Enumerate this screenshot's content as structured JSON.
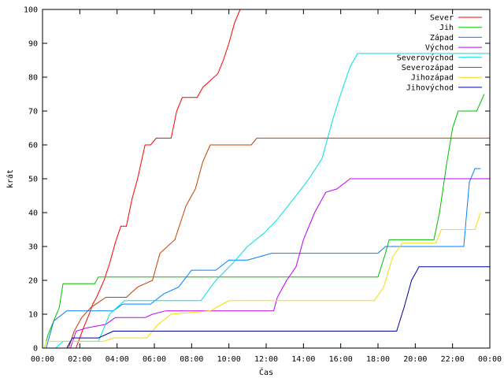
{
  "chart_data": {
    "type": "line",
    "title": "",
    "xlabel": "Čas",
    "ylabel": "krát",
    "ylim": [
      0,
      100
    ],
    "xlim": [
      0,
      24
    ],
    "x_ticks": [
      "00:00",
      "02:00",
      "04:00",
      "06:00",
      "08:00",
      "10:00",
      "12:00",
      "14:00",
      "16:00",
      "18:00",
      "20:00",
      "22:00",
      "00:00"
    ],
    "y_ticks": [
      "0",
      "10",
      "20",
      "30",
      "40",
      "50",
      "60",
      "70",
      "80",
      "90",
      "100"
    ],
    "grid": false,
    "legend_position": "top-right",
    "series": [
      {
        "name": "Sever",
        "color": "#ff0000",
        "points": [
          [
            1.8,
            0
          ],
          [
            2.0,
            3
          ],
          [
            2.2,
            6
          ],
          [
            2.5,
            10
          ],
          [
            2.7,
            13
          ],
          [
            2.9,
            15
          ],
          [
            3.3,
            20
          ],
          [
            3.6,
            25
          ],
          [
            3.9,
            31
          ],
          [
            4.2,
            36
          ],
          [
            4.5,
            36
          ],
          [
            4.8,
            44
          ],
          [
            5.1,
            50
          ],
          [
            5.5,
            60
          ],
          [
            5.8,
            60
          ],
          [
            6.1,
            62
          ],
          [
            6.9,
            62
          ],
          [
            7.2,
            70
          ],
          [
            7.5,
            74
          ],
          [
            8.3,
            74
          ],
          [
            8.6,
            77
          ],
          [
            9.0,
            79
          ],
          [
            9.4,
            81
          ],
          [
            9.7,
            85
          ],
          [
            10.0,
            90
          ],
          [
            10.3,
            96
          ],
          [
            10.6,
            100
          ]
        ]
      },
      {
        "name": "Jih",
        "color": "#00c000",
        "points": [
          [
            0.1,
            0
          ],
          [
            0.3,
            4
          ],
          [
            0.6,
            8
          ],
          [
            0.9,
            12
          ],
          [
            1.1,
            19
          ],
          [
            2.8,
            19
          ],
          [
            3.0,
            21
          ],
          [
            18.0,
            21
          ],
          [
            18.4,
            28
          ],
          [
            18.6,
            32
          ],
          [
            21.0,
            32
          ],
          [
            21.3,
            40
          ],
          [
            21.7,
            55
          ],
          [
            22.0,
            65
          ],
          [
            22.3,
            70
          ],
          [
            23.3,
            70
          ],
          [
            23.7,
            75
          ]
        ]
      },
      {
        "name": "Západ",
        "color": "#0080ff",
        "points": [
          [
            0.2,
            0
          ],
          [
            0.6,
            8
          ],
          [
            1.3,
            11
          ],
          [
            3.8,
            11
          ],
          [
            4.3,
            13
          ],
          [
            5.8,
            13
          ],
          [
            6.5,
            16
          ],
          [
            7.3,
            18
          ],
          [
            8.0,
            23
          ],
          [
            9.3,
            23
          ],
          [
            10.0,
            26
          ],
          [
            11.0,
            26
          ],
          [
            12.3,
            28
          ],
          [
            18.0,
            28
          ],
          [
            18.4,
            30
          ],
          [
            22.6,
            30
          ],
          [
            22.9,
            49
          ],
          [
            23.2,
            53
          ],
          [
            23.5,
            53
          ]
        ]
      },
      {
        "name": "Východ",
        "color": "#c000ff",
        "points": [
          [
            1.5,
            0
          ],
          [
            1.8,
            5
          ],
          [
            2.4,
            6
          ],
          [
            3.4,
            7
          ],
          [
            3.9,
            9
          ],
          [
            5.5,
            9
          ],
          [
            5.9,
            10
          ],
          [
            6.6,
            11
          ],
          [
            12.4,
            11
          ],
          [
            12.6,
            15
          ],
          [
            13.1,
            20
          ],
          [
            13.6,
            24
          ],
          [
            14.0,
            32
          ],
          [
            14.6,
            40
          ],
          [
            15.2,
            46
          ],
          [
            15.8,
            47
          ],
          [
            16.5,
            50
          ],
          [
            24,
            50
          ]
        ]
      },
      {
        "name": "Severovýchod",
        "color": "#00e0e0",
        "points": [
          [
            0.7,
            0
          ],
          [
            1.1,
            2
          ],
          [
            3.0,
            2
          ],
          [
            3.6,
            10
          ],
          [
            4.4,
            14
          ],
          [
            8.5,
            14
          ],
          [
            9.3,
            20
          ],
          [
            10.2,
            25
          ],
          [
            11.0,
            30
          ],
          [
            11.9,
            34
          ],
          [
            12.6,
            38
          ],
          [
            13.6,
            45
          ],
          [
            14.3,
            50
          ],
          [
            15.0,
            56
          ],
          [
            15.6,
            68
          ],
          [
            16.0,
            75
          ],
          [
            16.5,
            83
          ],
          [
            16.9,
            87
          ],
          [
            24,
            87
          ]
        ]
      },
      {
        "name": "Severozápad",
        "color": "#c04000",
        "points": [
          [
            1.4,
            0
          ],
          [
            1.7,
            5
          ],
          [
            2.1,
            9
          ],
          [
            2.6,
            12
          ],
          [
            3.4,
            15
          ],
          [
            4.5,
            15
          ],
          [
            5.1,
            18
          ],
          [
            5.9,
            20
          ],
          [
            6.3,
            28
          ],
          [
            7.1,
            32
          ],
          [
            7.7,
            42
          ],
          [
            8.2,
            47
          ],
          [
            8.6,
            55
          ],
          [
            9.0,
            60
          ],
          [
            11.2,
            60
          ],
          [
            11.5,
            62
          ],
          [
            24,
            62
          ]
        ]
      },
      {
        "name": "Jihozápad",
        "color": "#f0e000",
        "points": [
          [
            0.1,
            0
          ],
          [
            0.2,
            2
          ],
          [
            3.3,
            2
          ],
          [
            3.8,
            3
          ],
          [
            5.6,
            3
          ],
          [
            6.2,
            7
          ],
          [
            6.9,
            10
          ],
          [
            9.0,
            11
          ],
          [
            10.0,
            14
          ],
          [
            17.8,
            14
          ],
          [
            18.3,
            18
          ],
          [
            18.8,
            27
          ],
          [
            19.3,
            31
          ],
          [
            21.1,
            31
          ],
          [
            21.4,
            35
          ],
          [
            23.2,
            35
          ],
          [
            23.5,
            40
          ]
        ]
      },
      {
        "name": "Jihovýchod",
        "color": "#0000a0",
        "points": [
          [
            1.3,
            0
          ],
          [
            1.6,
            3
          ],
          [
            3.0,
            3
          ],
          [
            3.8,
            5
          ],
          [
            19.0,
            5
          ],
          [
            19.4,
            12
          ],
          [
            19.8,
            20
          ],
          [
            20.2,
            24
          ],
          [
            24,
            24
          ]
        ]
      }
    ]
  }
}
